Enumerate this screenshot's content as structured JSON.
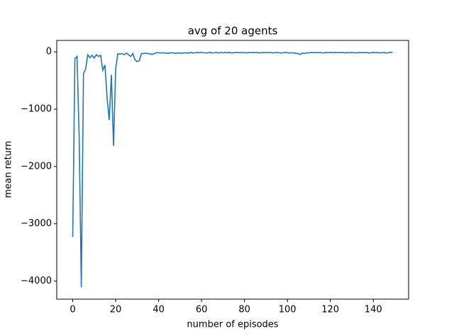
{
  "chart_data": {
    "type": "line",
    "title": "avg of 20 agents",
    "x_label": "number of episodes",
    "y_label": "mean return",
    "x": [
      0,
      1,
      2,
      3,
      4,
      5,
      6,
      7,
      8,
      9,
      10,
      11,
      12,
      13,
      14,
      15,
      16,
      17,
      18,
      19,
      20,
      21,
      22,
      23,
      24,
      25,
      26,
      27,
      28,
      29,
      30,
      31,
      32,
      33,
      34,
      35,
      36,
      37,
      38,
      39,
      40,
      41,
      42,
      43,
      44,
      45,
      46,
      47,
      48,
      49,
      50,
      51,
      52,
      53,
      54,
      55,
      56,
      57,
      58,
      59,
      60,
      61,
      62,
      63,
      64,
      65,
      66,
      67,
      68,
      69,
      70,
      71,
      72,
      73,
      74,
      75,
      76,
      77,
      78,
      79,
      80,
      81,
      82,
      83,
      84,
      85,
      86,
      87,
      88,
      89,
      90,
      91,
      92,
      93,
      94,
      95,
      96,
      97,
      98,
      99,
      100,
      101,
      102,
      103,
      104,
      105,
      106,
      107,
      108,
      109,
      110,
      111,
      112,
      113,
      114,
      115,
      116,
      117,
      118,
      119,
      120,
      121,
      122,
      123,
      124,
      125,
      126,
      127,
      128,
      129,
      130,
      131,
      132,
      133,
      134,
      135,
      136,
      137,
      138,
      139,
      140,
      141,
      142,
      143,
      144,
      145,
      146,
      147,
      148,
      149
    ],
    "series": [
      {
        "name": "mean return",
        "color": "#1f77b4",
        "values": [
          -3230,
          -120,
          -80,
          -1500,
          -4110,
          -380,
          -300,
          -50,
          -100,
          -60,
          -110,
          -50,
          -80,
          -60,
          -320,
          -230,
          -800,
          -1190,
          -400,
          -1640,
          -300,
          -30,
          -40,
          -30,
          -50,
          -20,
          -50,
          -80,
          -30,
          -140,
          -170,
          -150,
          -30,
          -30,
          -25,
          -30,
          -35,
          -45,
          -30,
          -15,
          -15,
          -20,
          -15,
          -20,
          -25,
          -20,
          -15,
          -20,
          -25,
          -20,
          -20,
          -25,
          -15,
          -20,
          -20,
          -10,
          -20,
          -15,
          -10,
          -15,
          -10,
          -15,
          -20,
          -15,
          -10,
          -20,
          -15,
          -10,
          -20,
          -10,
          -15,
          -10,
          -15,
          -10,
          -20,
          -15,
          -10,
          -15,
          -10,
          -15,
          -10,
          -20,
          -10,
          -15,
          -10,
          -15,
          -10,
          -20,
          -10,
          -15,
          -10,
          -15,
          -10,
          -20,
          -15,
          -10,
          -15,
          -20,
          -15,
          -10,
          -15,
          -20,
          -15,
          -20,
          -25,
          -30,
          -45,
          -20,
          -30,
          -15,
          -20,
          -10,
          -15,
          -10,
          -15,
          -10,
          -15,
          -20,
          -10,
          -15,
          -10,
          -15,
          -10,
          -15,
          -10,
          -15,
          -10,
          -20,
          -10,
          -15,
          -10,
          -15,
          -20,
          -10,
          -15,
          -10,
          -15,
          -10,
          -20,
          -15,
          -10,
          -15,
          -10,
          -20,
          -15,
          -10,
          -20,
          -15,
          -10,
          -10
        ]
      }
    ],
    "xlim": [
      -7.45,
      156.45
    ],
    "xticks": [
      0,
      20,
      40,
      60,
      80,
      100,
      120,
      140
    ],
    "ylim": [
      -4315,
      200
    ],
    "yticks": [
      {
        "value": -4000,
        "label": "−4000"
      },
      {
        "value": -3000,
        "label": "−3000"
      },
      {
        "value": -2000,
        "label": "−2000"
      },
      {
        "value": -1000,
        "label": "−1000"
      },
      0
    ]
  }
}
